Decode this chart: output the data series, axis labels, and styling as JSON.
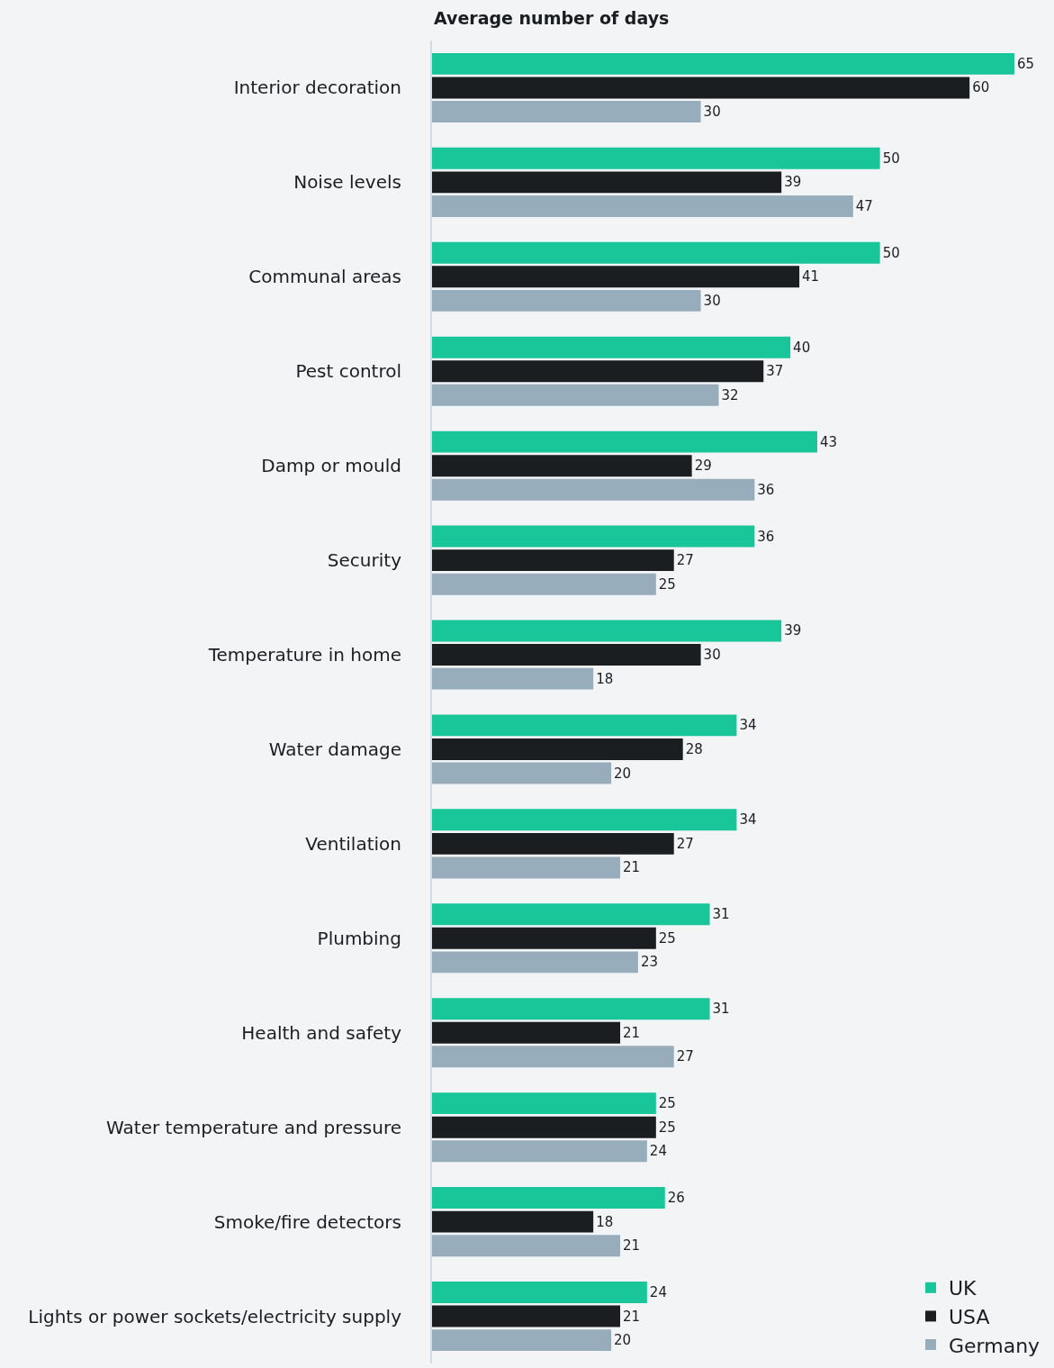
{
  "chart_data": {
    "type": "bar",
    "orientation": "horizontal",
    "xlabel": "Average number of days",
    "categories": [
      "Interior decoration",
      "Noise levels",
      "Communal areas",
      "Pest control",
      "Damp or mould",
      "Security",
      "Temperature in home",
      "Water damage",
      "Ventilation",
      "Plumbing",
      "Health and safety",
      "Water temperature and pressure",
      "Smoke/fire detectors",
      "Lights or power sockets/electricity supply"
    ],
    "series": [
      {
        "name": "UK",
        "color": "#18c69a",
        "values": [
          65,
          50,
          50,
          40,
          43,
          36,
          39,
          34,
          34,
          31,
          31,
          25,
          26,
          24
        ]
      },
      {
        "name": "USA",
        "color": "#1a1e20",
        "values": [
          60,
          39,
          41,
          37,
          29,
          27,
          30,
          28,
          27,
          25,
          21,
          25,
          18,
          21
        ]
      },
      {
        "name": "Germany",
        "color": "#98adbc",
        "values": [
          30,
          47,
          30,
          32,
          36,
          25,
          18,
          20,
          21,
          23,
          27,
          24,
          21,
          20
        ]
      }
    ],
    "data_labels": true,
    "tick_labels": "y",
    "grid": false,
    "legend": "bottom right"
  }
}
